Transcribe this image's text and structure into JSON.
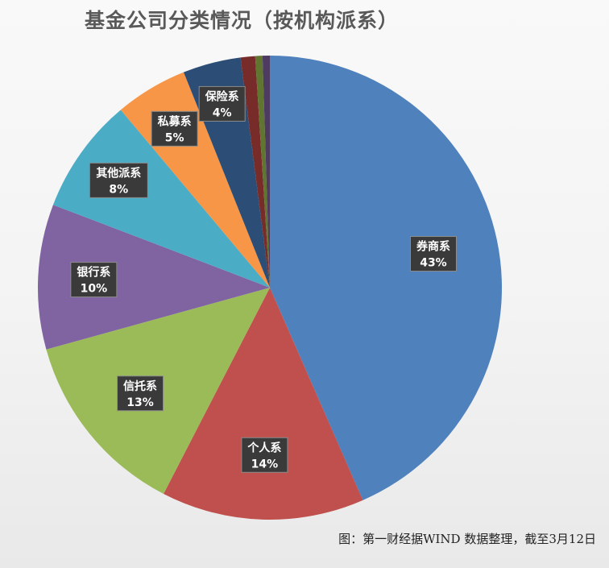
{
  "chart_data": {
    "type": "pie",
    "title": "基金公司分类情况（按机构派系）",
    "slices": [
      {
        "name": "券商系",
        "value": 43,
        "label": "43%",
        "color": "#4F81BD"
      },
      {
        "name": "个人系",
        "value": 14,
        "label": "14%",
        "color": "#C0504D"
      },
      {
        "name": "信托系",
        "value": 13,
        "label": "13%",
        "color": "#9BBB59"
      },
      {
        "name": "银行系",
        "value": 10,
        "label": "10%",
        "color": "#8064A2"
      },
      {
        "name": "其他派系",
        "value": 8,
        "label": "8%",
        "color": "#4BACC6"
      },
      {
        "name": "私募系",
        "value": 5,
        "label": "5%",
        "color": "#F79646"
      },
      {
        "name": "保险系",
        "value": 4,
        "label": "4%",
        "color": "#2C4D75"
      },
      {
        "name": "",
        "value": 1,
        "label": "",
        "color": "#772C2A"
      },
      {
        "name": "",
        "value": 0.5,
        "label": "",
        "color": "#5F7530"
      },
      {
        "name": "",
        "value": 0.5,
        "label": "",
        "color": "#4D3B62"
      }
    ],
    "start_angle_deg": 0,
    "direction": "clockwise",
    "legend": "none"
  },
  "footer": {
    "source": "图：第一财经据WIND 数据整理，截至3月12日"
  }
}
